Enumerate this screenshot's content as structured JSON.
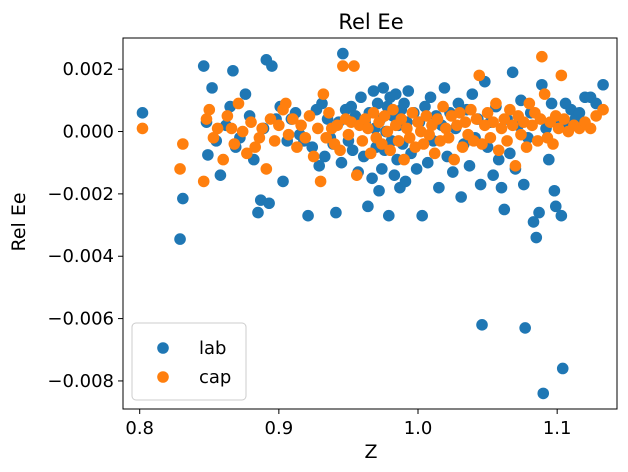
{
  "chart_data": {
    "type": "scatter",
    "title": "Rel Ee",
    "xlabel": "Z",
    "ylabel": "Rel Ee",
    "xlim": [
      0.788,
      1.143
    ],
    "ylim": [
      -0.0089,
      0.003
    ],
    "x_ticks": [
      0.8,
      0.9,
      1.0,
      1.1
    ],
    "x_tick_labels": [
      "0.8",
      "0.9",
      "1.0",
      "1.1"
    ],
    "y_ticks": [
      0.002,
      0.0,
      -0.002,
      -0.004,
      -0.006,
      -0.008
    ],
    "y_tick_labels": [
      "0.002",
      "0.000",
      "−0.002",
      "−0.004",
      "−0.006",
      "−0.008"
    ],
    "grid": false,
    "legend_position": "lower-left",
    "series": [
      {
        "name": "lab",
        "color": "#1f77b4",
        "points": [
          [
            0.802,
            0.0006
          ],
          [
            0.829,
            -0.00345
          ],
          [
            0.831,
            -0.00215
          ],
          [
            0.846,
            0.0021
          ],
          [
            0.848,
            0.0003
          ],
          [
            0.849,
            -0.00075
          ],
          [
            0.852,
            0.0014
          ],
          [
            0.855,
            -0.0003
          ],
          [
            0.858,
            -0.0014
          ],
          [
            0.862,
            0.0002
          ],
          [
            0.865,
            0.0008
          ],
          [
            0.867,
            0.00195
          ],
          [
            0.869,
            -0.0005
          ],
          [
            0.872,
            -0.0002
          ],
          [
            0.876,
            0.0012
          ],
          [
            0.879,
            0.0005
          ],
          [
            0.882,
            -0.0009
          ],
          [
            0.885,
            -0.0026
          ],
          [
            0.887,
            -0.0022
          ],
          [
            0.889,
            0.0001
          ],
          [
            0.891,
            0.0023
          ],
          [
            0.893,
            -0.0023
          ],
          [
            0.895,
            0.0021
          ],
          [
            0.898,
            0.0004
          ],
          [
            0.901,
            0.0008
          ],
          [
            0.903,
            -0.0016
          ],
          [
            0.906,
            -0.0003
          ],
          [
            0.909,
            0.0004
          ],
          [
            0.912,
            0.0006
          ],
          [
            0.915,
            -0.0001
          ],
          [
            0.918,
            -0.0003
          ],
          [
            0.921,
            -0.0027
          ],
          [
            0.924,
            -0.0005
          ],
          [
            0.927,
            0.0007
          ],
          [
            0.929,
            -0.0011
          ],
          [
            0.931,
            0.0009
          ],
          [
            0.933,
            -0.0008
          ],
          [
            0.935,
            0.0004
          ],
          [
            0.937,
            -0.0002
          ],
          [
            0.939,
            -0.0004
          ],
          [
            0.941,
            -0.0026
          ],
          [
            0.943,
            0.0003
          ],
          [
            0.945,
            -0.001
          ],
          [
            0.946,
            0.0025
          ],
          [
            0.948,
            0.0007
          ],
          [
            0.95,
            -0.0003
          ],
          [
            0.952,
            0.0008
          ],
          [
            0.953,
            -0.0006
          ],
          [
            0.955,
            0.0005
          ],
          [
            0.957,
            -0.0013
          ],
          [
            0.959,
            0.0011
          ],
          [
            0.961,
            -0.0008
          ],
          [
            0.962,
            0.0003
          ],
          [
            0.964,
            -0.0024
          ],
          [
            0.965,
            0.0006
          ],
          [
            0.967,
            -0.0015
          ],
          [
            0.968,
            0.0013
          ],
          [
            0.969,
            0.0001
          ],
          [
            0.97,
            -0.0005
          ],
          [
            0.971,
            0.0009
          ],
          [
            0.972,
            -0.0019
          ],
          [
            0.973,
            0.0004
          ],
          [
            0.974,
            -0.0012
          ],
          [
            0.975,
            0.0014
          ],
          [
            0.976,
            -0.0006
          ],
          [
            0.977,
            0.0
          ],
          [
            0.978,
            0.0008
          ],
          [
            0.979,
            -0.0027
          ],
          [
            0.98,
            0.0011
          ],
          [
            0.981,
            -0.0003
          ],
          [
            0.982,
            0.0005
          ],
          [
            0.983,
            -0.0014
          ],
          [
            0.984,
            0.0012
          ],
          [
            0.985,
            -0.0009
          ],
          [
            0.986,
            0.0002
          ],
          [
            0.987,
            -0.0018
          ],
          [
            0.988,
            0.0007
          ],
          [
            0.989,
            -0.0004
          ],
          [
            0.99,
            0.0009
          ],
          [
            0.991,
            -0.0016
          ],
          [
            0.992,
            0.0003
          ],
          [
            0.993,
            0.0013
          ],
          [
            0.995,
            -0.0007
          ],
          [
            0.997,
            0.0006
          ],
          [
            0.999,
            -0.0012
          ],
          [
            1.001,
            0.0003
          ],
          [
            1.003,
            -0.0027
          ],
          [
            1.005,
            0.0008
          ],
          [
            1.007,
            -0.001
          ],
          [
            1.009,
            0.0011
          ],
          [
            1.011,
            -0.0003
          ],
          [
            1.013,
            0.0005
          ],
          [
            1.015,
            -0.0018
          ],
          [
            1.017,
            0.0002
          ],
          [
            1.019,
            0.0014
          ],
          [
            1.021,
            -0.0008
          ],
          [
            1.023,
            0.0006
          ],
          [
            1.025,
            -0.0013
          ],
          [
            1.027,
            0.0001
          ],
          [
            1.029,
            0.0009
          ],
          [
            1.031,
            -0.0021
          ],
          [
            1.033,
            -0.0004
          ],
          [
            1.035,
            0.0007
          ],
          [
            1.037,
            -0.0011
          ],
          [
            1.039,
            0.0012
          ],
          [
            1.041,
            -0.0002
          ],
          [
            1.043,
            0.0004
          ],
          [
            1.045,
            -0.0017
          ],
          [
            1.046,
            -0.0062
          ],
          [
            1.048,
            0.0016
          ],
          [
            1.05,
            -0.0005
          ],
          [
            1.052,
            0.0003
          ],
          [
            1.054,
            -0.0014
          ],
          [
            1.056,
            0.0008
          ],
          [
            1.058,
            -0.0009
          ],
          [
            1.06,
            -0.0018
          ],
          [
            1.062,
            -0.0025
          ],
          [
            1.064,
            0.0004
          ],
          [
            1.066,
            -0.0007
          ],
          [
            1.068,
            0.0019
          ],
          [
            1.07,
            -0.0012
          ],
          [
            1.072,
            0.0002
          ],
          [
            1.074,
            0.001
          ],
          [
            1.076,
            -0.0017
          ],
          [
            1.077,
            -0.0063
          ],
          [
            1.079,
            -0.0002
          ],
          [
            1.081,
            0.0006
          ],
          [
            1.083,
            -0.0029
          ],
          [
            1.085,
            -0.0034
          ],
          [
            1.087,
            -0.0026
          ],
          [
            1.089,
            0.0015
          ],
          [
            1.09,
            -0.0084
          ],
          [
            1.092,
            0.0001
          ],
          [
            1.094,
            -0.0009
          ],
          [
            1.096,
            0.0009
          ],
          [
            1.098,
            -0.0019
          ],
          [
            1.099,
            -0.0024
          ],
          [
            1.101,
            0.0003
          ],
          [
            1.103,
            -0.0027
          ],
          [
            1.104,
            -0.0076
          ],
          [
            1.106,
            0.0009
          ],
          [
            1.108,
            0.0002
          ],
          [
            1.11,
            0.0007
          ],
          [
            1.113,
            0.0004
          ],
          [
            1.116,
            0.0006
          ],
          [
            1.12,
            0.0011
          ],
          [
            1.124,
            0.0011
          ],
          [
            1.128,
            0.0009
          ],
          [
            1.133,
            0.0015
          ]
        ]
      },
      {
        "name": "cap",
        "color": "#ff7f0e",
        "points": [
          [
            0.802,
            0.0001
          ],
          [
            0.829,
            -0.0012
          ],
          [
            0.831,
            -0.0004
          ],
          [
            0.846,
            -0.0016
          ],
          [
            0.848,
            0.0004
          ],
          [
            0.85,
            0.0007
          ],
          [
            0.853,
            -0.0002
          ],
          [
            0.856,
            0.0001
          ],
          [
            0.86,
            -0.0009
          ],
          [
            0.863,
            0.0005
          ],
          [
            0.866,
            0.0001
          ],
          [
            0.868,
            -0.0004
          ],
          [
            0.871,
            0.0009
          ],
          [
            0.874,
            0.0
          ],
          [
            0.877,
            -0.0007
          ],
          [
            0.88,
            0.0003
          ],
          [
            0.883,
            -0.0005
          ],
          [
            0.886,
            -0.0002
          ],
          [
            0.888,
            0.0001
          ],
          [
            0.891,
            -0.0012
          ],
          [
            0.894,
            0.0004
          ],
          [
            0.897,
            -0.0003
          ],
          [
            0.9,
            0.0002
          ],
          [
            0.903,
            0.0007
          ],
          [
            0.905,
            0.0009
          ],
          [
            0.907,
            -0.0001
          ],
          [
            0.91,
            0.0004
          ],
          [
            0.913,
            -0.0005
          ],
          [
            0.916,
            0.0002
          ],
          [
            0.919,
            -0.0002
          ],
          [
            0.922,
            0.0005
          ],
          [
            0.925,
            -0.0008
          ],
          [
            0.928,
            0.0001
          ],
          [
            0.93,
            -0.0016
          ],
          [
            0.932,
            0.0012
          ],
          [
            0.934,
            -0.0002
          ],
          [
            0.936,
            0.0006
          ],
          [
            0.938,
            0.0001
          ],
          [
            0.94,
            -0.0004
          ],
          [
            0.942,
            0.0002
          ],
          [
            0.944,
            -0.0006
          ],
          [
            0.946,
            0.0021
          ],
          [
            0.948,
            0.0004
          ],
          [
            0.95,
            -0.0001
          ],
          [
            0.952,
            0.0003
          ],
          [
            0.954,
            0.0021
          ],
          [
            0.956,
            -0.0014
          ],
          [
            0.958,
            0.0002
          ],
          [
            0.96,
            -0.0003
          ],
          [
            0.962,
            0.0004
          ],
          [
            0.964,
            0.0001
          ],
          [
            0.966,
            -0.0007
          ],
          [
            0.968,
            0.0006
          ],
          [
            0.97,
            -0.0002
          ],
          [
            0.972,
            0.0003
          ],
          [
            0.974,
            -0.0004
          ],
          [
            0.976,
            0.0005
          ],
          [
            0.978,
            0.0
          ],
          [
            0.98,
            -0.0006
          ],
          [
            0.982,
            0.0007
          ],
          [
            0.984,
            0.0002
          ],
          [
            0.986,
            -0.0003
          ],
          [
            0.988,
            0.0004
          ],
          [
            0.99,
            -0.0009
          ],
          [
            0.992,
            0.0001
          ],
          [
            0.994,
            -0.0002
          ],
          [
            0.996,
            0.0006
          ],
          [
            0.998,
            -0.0005
          ],
          [
            1.0,
            0.0003
          ],
          [
            1.002,
            0.0
          ],
          [
            1.004,
            -0.0004
          ],
          [
            1.006,
            0.0005
          ],
          [
            1.008,
            -0.0001
          ],
          [
            1.01,
            0.0002
          ],
          [
            1.012,
            -0.0007
          ],
          [
            1.014,
            0.0004
          ],
          [
            1.016,
            -0.0003
          ],
          [
            1.018,
            0.0008
          ],
          [
            1.02,
            0.0001
          ],
          [
            1.022,
            -0.0002
          ],
          [
            1.024,
            0.0005
          ],
          [
            1.026,
            -0.0009
          ],
          [
            1.028,
            0.0002
          ],
          [
            1.03,
            0.0006
          ],
          [
            1.032,
            -0.0005
          ],
          [
            1.034,
            0.0003
          ],
          [
            1.036,
            -0.0001
          ],
          [
            1.038,
            0.0007
          ],
          [
            1.04,
            -0.0003
          ],
          [
            1.042,
            0.0004
          ],
          [
            1.044,
            0.0018
          ],
          [
            1.046,
            -0.0004
          ],
          [
            1.048,
            0.0002
          ],
          [
            1.05,
            0.0006
          ],
          [
            1.052,
            -0.0002
          ],
          [
            1.054,
            0.0003
          ],
          [
            1.056,
            0.0009
          ],
          [
            1.058,
            -0.0006
          ],
          [
            1.06,
            0.0001
          ],
          [
            1.062,
            0.0004
          ],
          [
            1.064,
            -0.0003
          ],
          [
            1.066,
            0.0007
          ],
          [
            1.068,
            0.0002
          ],
          [
            1.07,
            -0.0011
          ],
          [
            1.072,
            0.0005
          ],
          [
            1.074,
            -0.0001
          ],
          [
            1.076,
            0.0003
          ],
          [
            1.078,
            -0.0005
          ],
          [
            1.08,
            0.0009
          ],
          [
            1.082,
            0.0002
          ],
          [
            1.084,
            0.0006
          ],
          [
            1.086,
            -0.0003
          ],
          [
            1.088,
            0.0004
          ],
          [
            1.089,
            0.0024
          ],
          [
            1.091,
            0.0012
          ],
          [
            1.093,
            -0.0002
          ],
          [
            1.095,
            0.0003
          ],
          [
            1.097,
            -0.0004
          ],
          [
            1.099,
            0.0005
          ],
          [
            1.101,
            0.0001
          ],
          [
            1.103,
            0.0018
          ],
          [
            1.105,
            0.0004
          ],
          [
            1.108,
            0.0
          ],
          [
            1.112,
            0.0002
          ],
          [
            1.116,
            0.0001
          ],
          [
            1.12,
            0.0003
          ],
          [
            1.124,
            0.0001
          ],
          [
            1.128,
            0.0005
          ],
          [
            1.133,
            0.0007
          ]
        ]
      }
    ]
  }
}
